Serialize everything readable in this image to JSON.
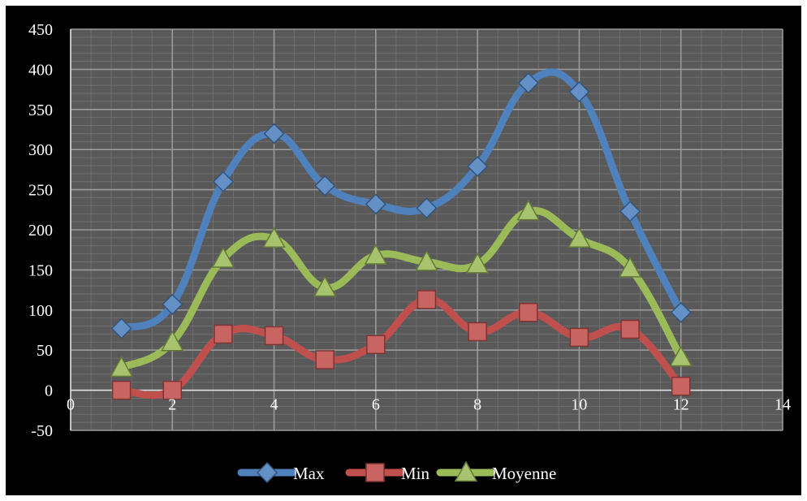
{
  "chart_data": {
    "type": "scatter",
    "title": "",
    "xlabel": "",
    "ylabel": "",
    "xlim": [
      0,
      14
    ],
    "ylim": [
      -50,
      450
    ],
    "x_major_step": 2,
    "x_minor_step": 0.4,
    "y_major_step": 50,
    "y_minor_step": 10,
    "grid": true,
    "smooth_lines": true,
    "legend_position": "bottom",
    "background_color": "#000000",
    "plot_background_color": "#595959",
    "x_tick_labels": [
      "0",
      "2",
      "4",
      "6",
      "8",
      "10",
      "12",
      "14"
    ],
    "y_tick_labels": [
      "450",
      "400",
      "350",
      "300",
      "250",
      "200",
      "150",
      "100",
      "50",
      "0",
      "-50"
    ],
    "series": [
      {
        "name": "Max",
        "color": "#4f81bd",
        "marker": "diamond",
        "x": [
          1,
          2,
          3,
          4,
          5,
          6,
          7,
          8,
          9,
          10,
          11,
          12
        ],
        "y": [
          77,
          107,
          260,
          320,
          255,
          232,
          227,
          279,
          383,
          372,
          223,
          97
        ]
      },
      {
        "name": "Min",
        "color": "#c0504d",
        "marker": "square",
        "x": [
          1,
          2,
          3,
          4,
          5,
          6,
          7,
          8,
          9,
          10,
          11,
          12
        ],
        "y": [
          0,
          0,
          70,
          68,
          38,
          57,
          113,
          73,
          97,
          66,
          76,
          5
        ]
      },
      {
        "name": "Moyenne",
        "color": "#9bbb59",
        "marker": "triangle",
        "x": [
          1,
          2,
          3,
          4,
          5,
          6,
          7,
          8,
          9,
          10,
          11,
          12
        ],
        "y": [
          28,
          60,
          164,
          189,
          128,
          168,
          160,
          157,
          223,
          189,
          152,
          41
        ]
      }
    ]
  }
}
